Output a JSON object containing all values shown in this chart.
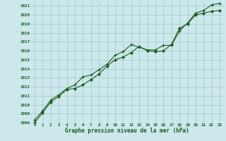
{
  "title": "Graphe pression niveau de la mer (hPa)",
  "bg_color": "#cce8ec",
  "grid_color": "#a8cccc",
  "line_color": "#1a5c1a",
  "marker_color": "#1a5c1a",
  "xlim": [
    -0.5,
    23.5
  ],
  "ylim": [
    1008,
    1021.5
  ],
  "xticks": [
    0,
    1,
    2,
    3,
    4,
    5,
    6,
    7,
    8,
    9,
    10,
    11,
    12,
    13,
    14,
    15,
    16,
    17,
    18,
    19,
    20,
    21,
    22,
    23
  ],
  "yticks": [
    1008,
    1009,
    1010,
    1011,
    1012,
    1013,
    1014,
    1015,
    1016,
    1017,
    1018,
    1019,
    1020,
    1021
  ],
  "series1_x": [
    0,
    1,
    2,
    3,
    4,
    5,
    6,
    7,
    8,
    9,
    10,
    11,
    12,
    13,
    14,
    15,
    16,
    17,
    18,
    19,
    20,
    21,
    22,
    23
  ],
  "series1_y": [
    1008.0,
    1009.1,
    1010.3,
    1010.9,
    1011.7,
    1011.8,
    1012.2,
    1012.8,
    1013.4,
    1014.3,
    1015.0,
    1015.3,
    1015.8,
    1016.5,
    1016.0,
    1015.9,
    1016.0,
    1016.7,
    1018.5,
    1019.0,
    1020.0,
    1020.2,
    1020.4,
    1020.5
  ],
  "series2_x": [
    0,
    1,
    2,
    3,
    4,
    5,
    6,
    7,
    8,
    9,
    10,
    11,
    12,
    13,
    14,
    15,
    16,
    17,
    18,
    19,
    20,
    21,
    22,
    23
  ],
  "series2_y": [
    1008.3,
    1009.3,
    1010.5,
    1011.1,
    1011.8,
    1012.2,
    1013.1,
    1013.3,
    1013.9,
    1014.5,
    1015.5,
    1015.9,
    1016.7,
    1016.4,
    1016.1,
    1016.1,
    1016.6,
    1016.6,
    1018.2,
    1019.1,
    1020.2,
    1020.5,
    1021.1,
    1021.3
  ]
}
